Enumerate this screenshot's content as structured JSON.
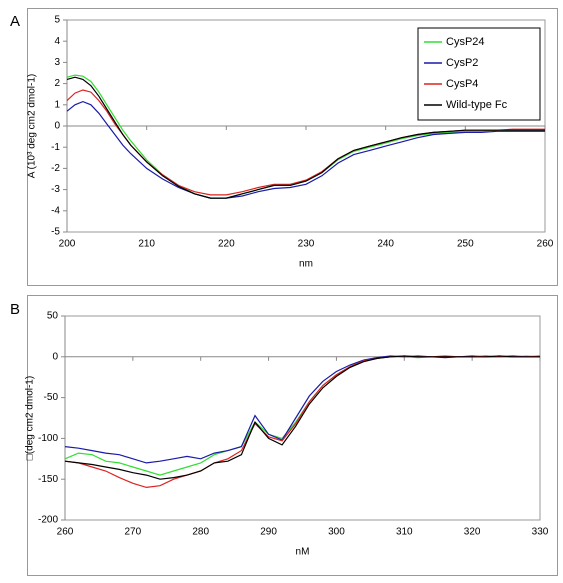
{
  "chart_data": [
    {
      "type": "line",
      "panel_label": "A",
      "x_label": "nm",
      "y_label": "A (10³ deg cm2 dmol-1)",
      "xlim": [
        200,
        260
      ],
      "xticks": [
        200,
        210,
        220,
        230,
        240,
        250,
        260
      ],
      "ylim": [
        -5,
        5
      ],
      "yticks": [
        -5,
        -4,
        -3,
        -2,
        -1,
        0,
        1,
        2,
        3,
        4,
        5
      ],
      "legend": "upper right",
      "x": [
        200,
        201,
        202,
        203,
        204,
        205,
        206,
        207,
        208,
        210,
        212,
        214,
        216,
        218,
        220,
        222,
        224,
        226,
        228,
        230,
        232,
        234,
        236,
        238,
        240,
        242,
        244,
        246,
        248,
        250,
        252,
        254,
        256,
        258,
        260
      ],
      "series": [
        {
          "name": "CysP24",
          "color": "#33dd33",
          "values": [
            2.3,
            2.4,
            2.35,
            2.1,
            1.6,
            1.0,
            0.4,
            -0.2,
            -0.7,
            -1.6,
            -2.3,
            -2.8,
            -3.2,
            -3.4,
            -3.4,
            -3.2,
            -3.0,
            -2.8,
            -2.8,
            -2.6,
            -2.2,
            -1.6,
            -1.2,
            -1.0,
            -0.8,
            -0.6,
            -0.45,
            -0.35,
            -0.3,
            -0.25,
            -0.25,
            -0.2,
            -0.2,
            -0.2,
            -0.2
          ]
        },
        {
          "name": "CysP2",
          "color": "#1a1aaa",
          "values": [
            0.7,
            1.0,
            1.15,
            1.0,
            0.6,
            0.1,
            -0.4,
            -0.9,
            -1.3,
            -2.0,
            -2.5,
            -2.9,
            -3.2,
            -3.4,
            -3.4,
            -3.3,
            -3.1,
            -2.95,
            -2.9,
            -2.75,
            -2.35,
            -1.75,
            -1.35,
            -1.15,
            -0.95,
            -0.75,
            -0.55,
            -0.4,
            -0.35,
            -0.3,
            -0.3,
            -0.25,
            -0.25,
            -0.25,
            -0.25
          ]
        },
        {
          "name": "CysP4",
          "color": "#dd2222",
          "values": [
            1.2,
            1.55,
            1.7,
            1.6,
            1.2,
            0.7,
            0.1,
            -0.4,
            -0.9,
            -1.7,
            -2.3,
            -2.8,
            -3.1,
            -3.25,
            -3.25,
            -3.1,
            -2.9,
            -2.75,
            -2.75,
            -2.55,
            -2.15,
            -1.55,
            -1.15,
            -0.95,
            -0.75,
            -0.55,
            -0.4,
            -0.3,
            -0.25,
            -0.2,
            -0.2,
            -0.2,
            -0.15,
            -0.15,
            -0.15
          ]
        },
        {
          "name": "Wild-type Fc",
          "color": "#000000",
          "values": [
            2.2,
            2.3,
            2.2,
            1.9,
            1.4,
            0.8,
            0.2,
            -0.4,
            -0.9,
            -1.7,
            -2.35,
            -2.85,
            -3.2,
            -3.4,
            -3.4,
            -3.2,
            -3.0,
            -2.8,
            -2.8,
            -2.6,
            -2.2,
            -1.55,
            -1.15,
            -0.95,
            -0.75,
            -0.55,
            -0.4,
            -0.3,
            -0.25,
            -0.2,
            -0.2,
            -0.2,
            -0.2,
            -0.2,
            -0.2
          ]
        }
      ]
    },
    {
      "type": "line",
      "panel_label": "B",
      "x_label": "nM",
      "y_label": "□(deg cm2 dmol-1)",
      "xlim": [
        260,
        330
      ],
      "xticks": [
        260,
        270,
        280,
        290,
        300,
        310,
        320,
        330
      ],
      "ylim": [
        -200,
        50
      ],
      "yticks": [
        -200,
        -150,
        -100,
        -50,
        0,
        50
      ],
      "x": [
        260,
        262,
        264,
        266,
        268,
        270,
        272,
        274,
        276,
        278,
        280,
        282,
        284,
        286,
        288,
        290,
        292,
        294,
        296,
        298,
        300,
        302,
        304,
        306,
        308,
        310,
        312,
        314,
        316,
        318,
        320,
        322,
        324,
        326,
        328,
        330
      ],
      "series": [
        {
          "color": "#33dd33",
          "values": [
            -125,
            -118,
            -120,
            -128,
            -130,
            -135,
            -140,
            -145,
            -140,
            -135,
            -130,
            -120,
            -115,
            -110,
            -80,
            -95,
            -100,
            -80,
            -55,
            -35,
            -22,
            -12,
            -5,
            -2,
            0,
            0,
            -1,
            0,
            0,
            0,
            0,
            0,
            1,
            0,
            1,
            0
          ]
        },
        {
          "color": "#1a1aaa",
          "values": [
            -110,
            -112,
            -115,
            -118,
            -120,
            -125,
            -130,
            -128,
            -125,
            -122,
            -125,
            -118,
            -115,
            -110,
            -72,
            -95,
            -102,
            -75,
            -48,
            -30,
            -18,
            -10,
            -4,
            -1,
            1,
            0,
            1,
            0,
            -1,
            0,
            1,
            0,
            0,
            1,
            0,
            0
          ]
        },
        {
          "color": "#dd2222",
          "values": [
            -128,
            -130,
            -135,
            -140,
            -148,
            -155,
            -160,
            -158,
            -150,
            -145,
            -140,
            -130,
            -125,
            -115,
            -82,
            -98,
            -103,
            -82,
            -55,
            -35,
            -22,
            -12,
            -5,
            -2,
            0,
            1,
            0,
            0,
            1,
            0,
            0,
            1,
            0,
            0,
            0,
            1
          ]
        },
        {
          "color": "#000000",
          "values": [
            -128,
            -130,
            -132,
            -135,
            -138,
            -142,
            -145,
            -150,
            -148,
            -145,
            -140,
            -130,
            -128,
            -120,
            -80,
            -100,
            -108,
            -85,
            -58,
            -38,
            -24,
            -13,
            -6,
            -2,
            0,
            1,
            0,
            0,
            0,
            0,
            0,
            0,
            1,
            0,
            0,
            0
          ]
        }
      ]
    }
  ]
}
